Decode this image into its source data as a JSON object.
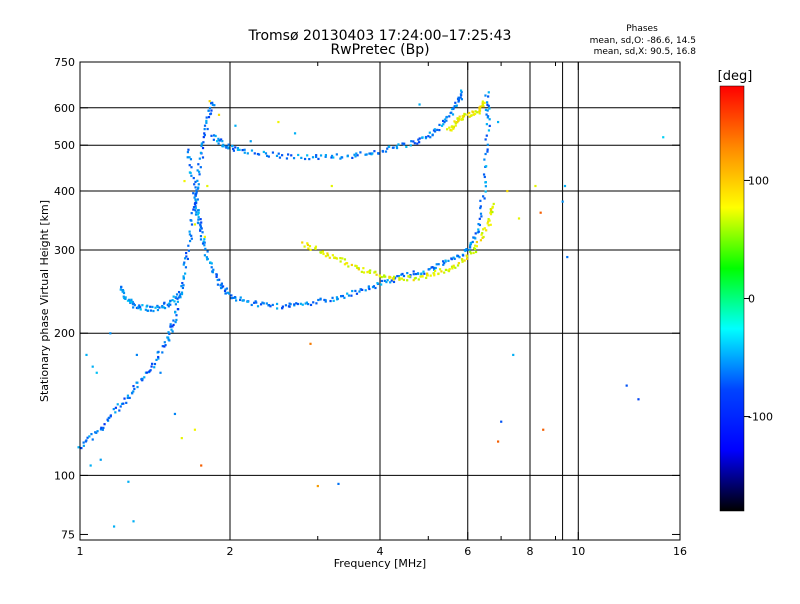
{
  "chart_data": {
    "type": "scatter",
    "title": "Tromsø 20130403 17:24:00–17:25:43",
    "subtitle": "RwPretec (Bp)",
    "xlabel": "Frequency [MHz]",
    "ylabel": "Stationary phase Virtual Height [km]",
    "x_scale": "log",
    "y_scale": "log",
    "xlim": [
      1,
      16
    ],
    "ylim": [
      73,
      750
    ],
    "x_ticks": [
      1,
      2,
      4,
      6,
      8,
      10,
      16
    ],
    "x_tick_labels": [
      "1",
      "2",
      "4",
      "6",
      "8",
      "10",
      "16"
    ],
    "x_minor_ticks": [
      3,
      5,
      7,
      9
    ],
    "x_gridlines": [
      2,
      4,
      6,
      8,
      9.3,
      10
    ],
    "y_ticks": [
      75,
      100,
      200,
      300,
      400,
      500,
      600,
      750
    ],
    "y_tick_labels": [
      "75",
      "100",
      "200",
      "300",
      "400",
      "500",
      "600",
      "750"
    ],
    "y_gridlines": [
      100,
      200,
      300,
      400,
      500,
      600
    ],
    "grid": true,
    "stats": {
      "heading": "Phases",
      "line1": "mean, sd,O: -86.6, 14.5",
      "line2": "mean, sd,X:  90.5, 16.8"
    },
    "colorbar": {
      "unit": "[deg]",
      "range": [
        -180,
        180
      ],
      "ticks": [
        100,
        0,
        -100
      ],
      "tick_labels": [
        "100",
        "0",
        "-100"
      ],
      "colors": [
        "#ff0000",
        "#ff8800",
        "#ffff00",
        "#00ff00",
        "#00ffff",
        "#0044ff",
        "#0000ff",
        "#000000"
      ]
    },
    "traces": [
      {
        "phase": -95,
        "points": [
          [
            1.65,
            490
          ],
          [
            1.7,
            400
          ],
          [
            1.72,
            360
          ],
          [
            1.75,
            330
          ],
          [
            1.8,
            290
          ],
          [
            1.9,
            255
          ],
          [
            2.0,
            240
          ],
          [
            2.2,
            232
          ],
          [
            2.5,
            228
          ],
          [
            2.8,
            230
          ],
          [
            3.2,
            236
          ],
          [
            3.6,
            244
          ],
          [
            4.0,
            255
          ],
          [
            4.5,
            265
          ],
          [
            5.0,
            272
          ],
          [
            5.5,
            284
          ],
          [
            6.0,
            300
          ],
          [
            6.3,
            330
          ],
          [
            6.5,
            420
          ],
          [
            6.6,
            560
          ],
          [
            6.55,
            650
          ]
        ]
      },
      {
        "phase": -95,
        "points": [
          [
            1.85,
            520
          ],
          [
            1.95,
            500
          ],
          [
            2.1,
            488
          ],
          [
            2.5,
            475
          ],
          [
            3.0,
            472
          ],
          [
            3.5,
            475
          ],
          [
            4.0,
            485
          ],
          [
            4.5,
            500
          ],
          [
            5.0,
            520
          ],
          [
            5.4,
            560
          ],
          [
            5.7,
            610
          ],
          [
            5.85,
            650
          ]
        ]
      },
      {
        "phase": -100,
        "points": [
          [
            1.0,
            115
          ],
          [
            1.1,
            125
          ],
          [
            1.2,
            140
          ],
          [
            1.3,
            155
          ],
          [
            1.4,
            170
          ],
          [
            1.5,
            195
          ],
          [
            1.55,
            215
          ],
          [
            1.6,
            250
          ],
          [
            1.65,
            300
          ],
          [
            1.7,
            380
          ],
          [
            1.75,
            470
          ],
          [
            1.8,
            560
          ],
          [
            1.85,
            620
          ]
        ]
      },
      {
        "phase": -90,
        "points": [
          [
            1.2,
            250
          ],
          [
            1.25,
            235
          ],
          [
            1.3,
            228
          ],
          [
            1.4,
            225
          ],
          [
            1.5,
            230
          ],
          [
            1.6,
            245
          ]
        ]
      },
      {
        "phase": 95,
        "points": [
          [
            2.8,
            310
          ],
          [
            3.1,
            295
          ],
          [
            3.4,
            283
          ],
          [
            3.8,
            270
          ],
          [
            4.2,
            262
          ],
          [
            4.7,
            262
          ],
          [
            5.2,
            268
          ],
          [
            5.7,
            278
          ],
          [
            6.2,
            300
          ],
          [
            6.6,
            340
          ],
          [
            6.8,
            380
          ]
        ]
      },
      {
        "phase": 100,
        "points": [
          [
            5.5,
            540
          ],
          [
            5.7,
            560
          ],
          [
            5.9,
            575
          ],
          [
            6.3,
            590
          ],
          [
            6.5,
            620
          ]
        ]
      }
    ],
    "scatter": [
      {
        "x": 1.03,
        "y": 180,
        "phase": -80
      },
      {
        "x": 1.06,
        "y": 170,
        "phase": -80
      },
      {
        "x": 1.08,
        "y": 165,
        "phase": -75
      },
      {
        "x": 1.05,
        "y": 105,
        "phase": -80
      },
      {
        "x": 1.1,
        "y": 108,
        "phase": -85
      },
      {
        "x": 1.15,
        "y": 200,
        "phase": -90
      },
      {
        "x": 1.3,
        "y": 180,
        "phase": -95
      },
      {
        "x": 1.45,
        "y": 165,
        "phase": -95
      },
      {
        "x": 1.55,
        "y": 135,
        "phase": -95
      },
      {
        "x": 1.6,
        "y": 120,
        "phase": 95
      },
      {
        "x": 1.7,
        "y": 125,
        "phase": 100
      },
      {
        "x": 1.75,
        "y": 105,
        "phase": 150
      },
      {
        "x": 1.62,
        "y": 420,
        "phase": 100
      },
      {
        "x": 1.7,
        "y": 340,
        "phase": 95
      },
      {
        "x": 1.78,
        "y": 320,
        "phase": 100
      },
      {
        "x": 1.82,
        "y": 620,
        "phase": 110
      },
      {
        "x": 1.9,
        "y": 580,
        "phase": 110
      },
      {
        "x": 2.05,
        "y": 550,
        "phase": -80
      },
      {
        "x": 2.2,
        "y": 510,
        "phase": -85
      },
      {
        "x": 2.5,
        "y": 560,
        "phase": 100
      },
      {
        "x": 2.7,
        "y": 530,
        "phase": -80
      },
      {
        "x": 2.9,
        "y": 190,
        "phase": 140
      },
      {
        "x": 3.0,
        "y": 95,
        "phase": 130
      },
      {
        "x": 3.2,
        "y": 410,
        "phase": 95
      },
      {
        "x": 3.3,
        "y": 96,
        "phase": -100
      },
      {
        "x": 4.8,
        "y": 610,
        "phase": -80
      },
      {
        "x": 6.9,
        "y": 560,
        "phase": -80
      },
      {
        "x": 7.2,
        "y": 400,
        "phase": 110
      },
      {
        "x": 7.4,
        "y": 180,
        "phase": -80
      },
      {
        "x": 7.6,
        "y": 350,
        "phase": 95
      },
      {
        "x": 7.0,
        "y": 130,
        "phase": -110
      },
      {
        "x": 6.9,
        "y": 118,
        "phase": 150
      },
      {
        "x": 8.2,
        "y": 410,
        "phase": 95
      },
      {
        "x": 8.4,
        "y": 360,
        "phase": 150
      },
      {
        "x": 8.5,
        "y": 125,
        "phase": 150
      },
      {
        "x": 9.4,
        "y": 410,
        "phase": -80
      },
      {
        "x": 9.5,
        "y": 290,
        "phase": -100
      },
      {
        "x": 9.3,
        "y": 380,
        "phase": -90
      },
      {
        "x": 12.5,
        "y": 155,
        "phase": -110
      },
      {
        "x": 13.2,
        "y": 145,
        "phase": -115
      },
      {
        "x": 14.8,
        "y": 520,
        "phase": -70
      },
      {
        "x": 1.17,
        "y": 78,
        "phase": -80
      },
      {
        "x": 1.28,
        "y": 80,
        "phase": -80
      },
      {
        "x": 1.25,
        "y": 97,
        "phase": -80
      },
      {
        "x": 1.8,
        "y": 410,
        "phase": 95
      }
    ]
  }
}
